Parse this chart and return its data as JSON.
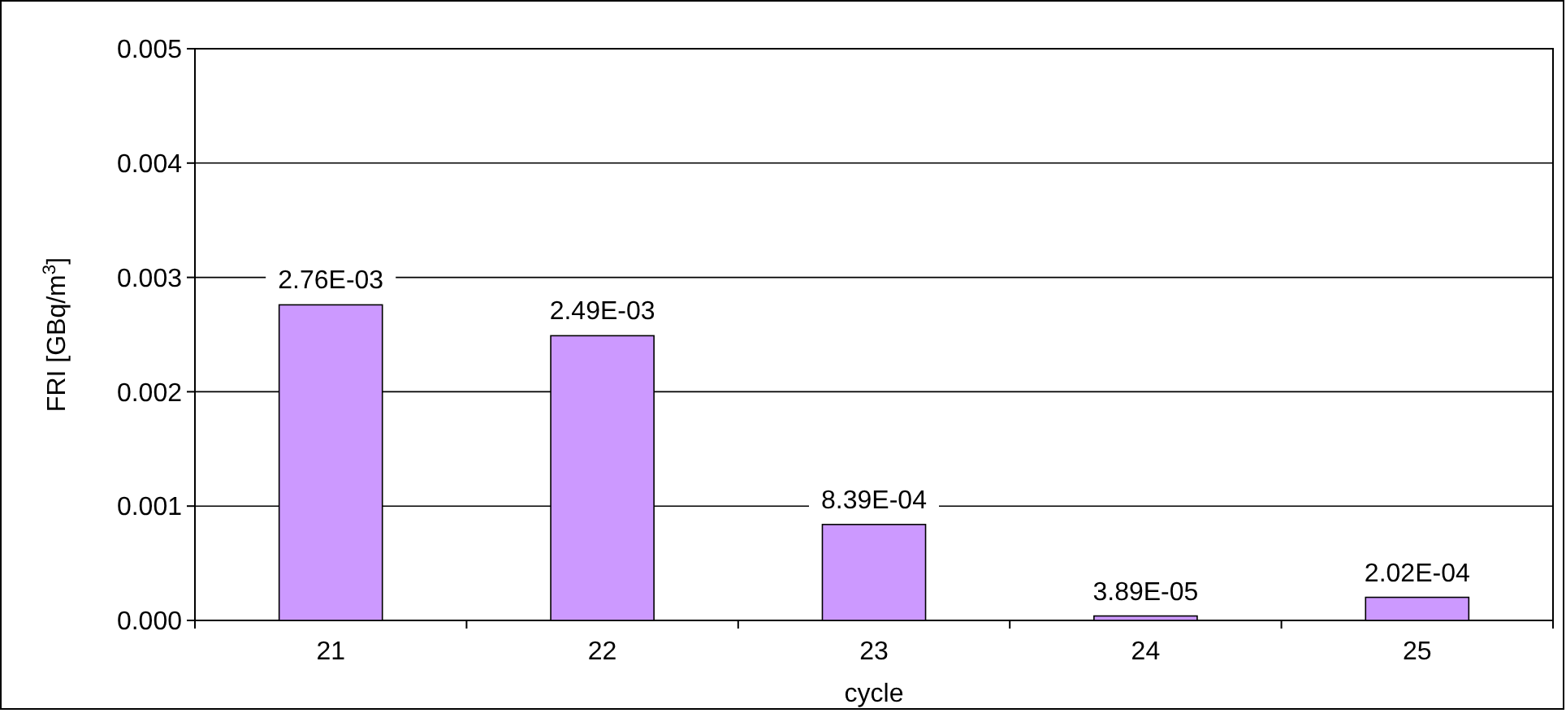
{
  "chart_data": {
    "type": "bar",
    "xlabel": "cycle",
    "ylabel": "FRI [GBq/m$^{3}$]",
    "categories": [
      "21",
      "22",
      "23",
      "24",
      "25"
    ],
    "values": [
      0.00276,
      0.00249,
      0.000839,
      3.89e-05,
      0.000202
    ],
    "value_labels": [
      "2.76E-03",
      "2.49E-03",
      "8.39E-04",
      "3.89E-05",
      "2.02E-04"
    ],
    "color": "#cc99ff",
    "ylim": [
      0,
      0.005
    ],
    "yticks": [
      {
        "value": 0,
        "label": "0.000"
      },
      {
        "value": 0.001,
        "label": "0.001"
      },
      {
        "value": 0.002,
        "label": "0.002"
      },
      {
        "value": 0.003,
        "label": "0.003"
      },
      {
        "value": 0.004,
        "label": "0.004"
      },
      {
        "value": 0.005,
        "label": "0.005"
      }
    ],
    "grid": "y"
  }
}
